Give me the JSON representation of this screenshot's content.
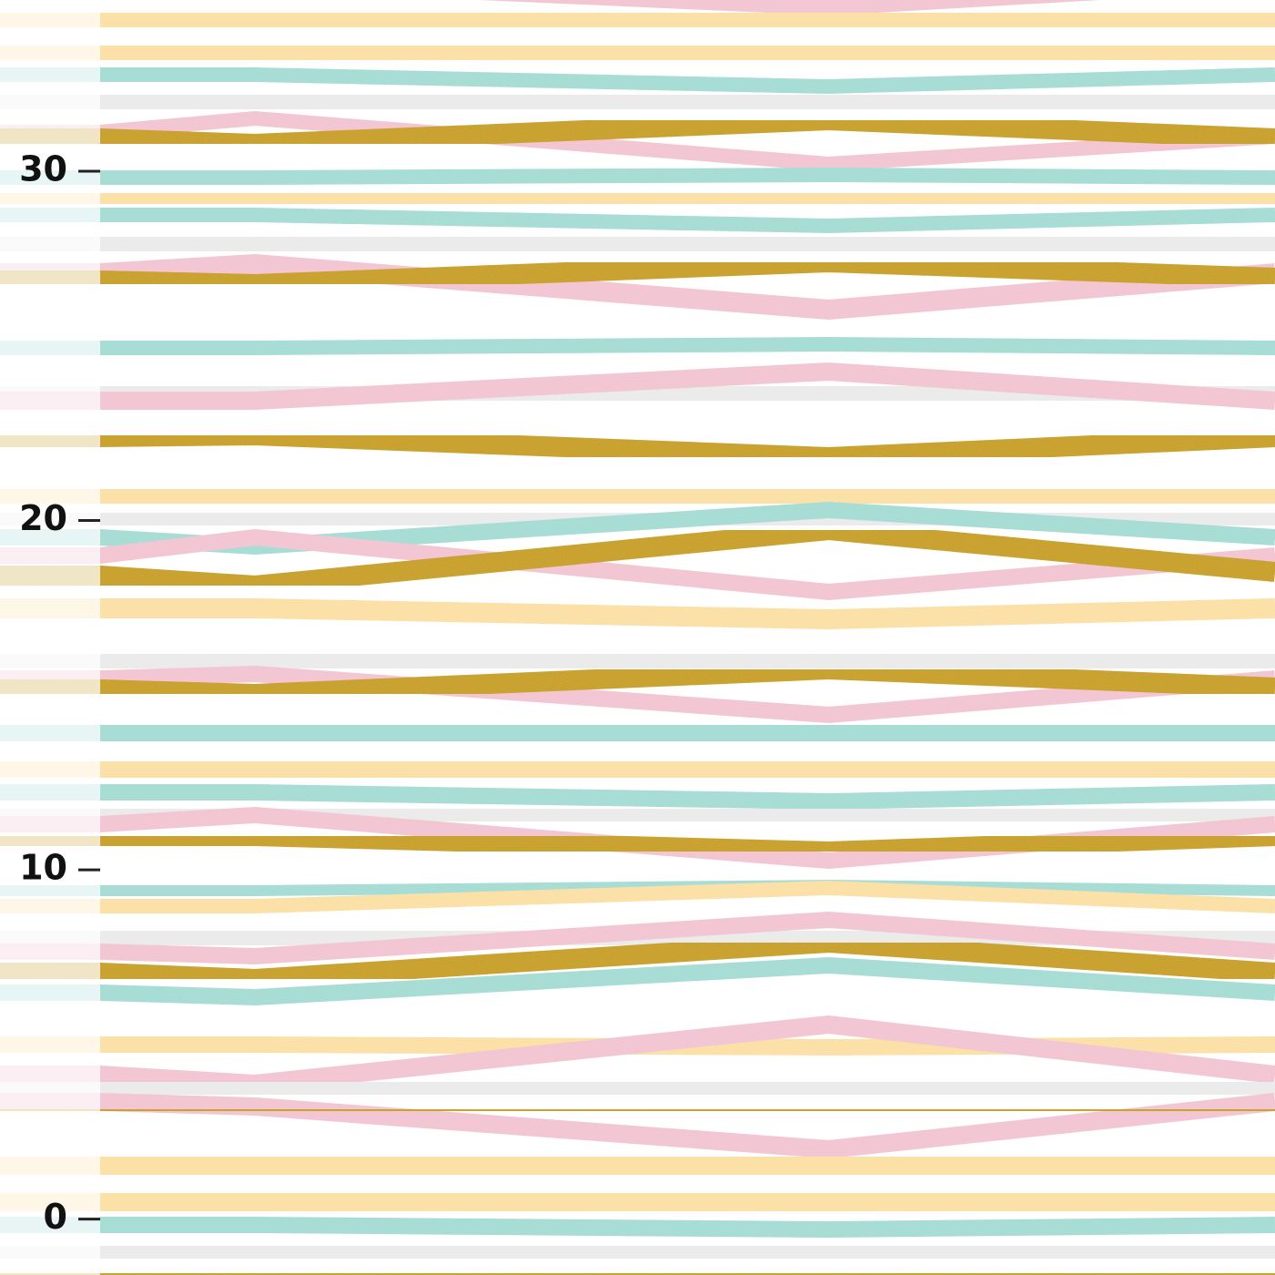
{
  "ruler": {
    "ylim": [
      -1.6,
      34.9
    ],
    "ticks": [
      0,
      10,
      20,
      30
    ]
  }
}
